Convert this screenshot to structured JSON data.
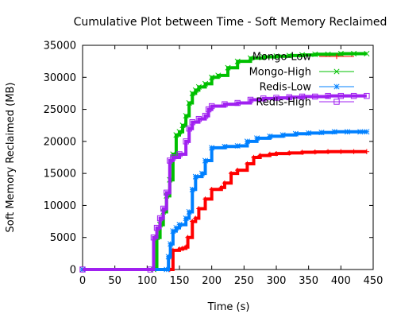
{
  "chart_data": {
    "type": "line",
    "title": "Cumulative Plot between Time - Soft Memory Reclaimed",
    "xlabel": "Time (s)",
    "ylabel": "Soft Memory Reclaimed (MB)",
    "xlim": [
      0,
      450
    ],
    "ylim": [
      0,
      35000
    ],
    "xticks": [
      0,
      50,
      100,
      150,
      200,
      250,
      300,
      350,
      400,
      450
    ],
    "yticks": [
      0,
      5000,
      10000,
      15000,
      20000,
      25000,
      30000,
      35000
    ],
    "grid": false,
    "legend_position": "top-right",
    "series": [
      {
        "name": "Mongo-Low",
        "color": "#ff0000",
        "marker": "plus",
        "x": [
          0,
          135,
          140,
          150,
          155,
          160,
          163,
          170,
          175,
          180,
          190,
          200,
          215,
          220,
          230,
          240,
          255,
          265,
          275,
          290,
          300,
          320,
          340,
          360,
          380,
          400,
          420,
          440
        ],
        "y": [
          0,
          0,
          3000,
          3200,
          3300,
          3500,
          5000,
          7500,
          8000,
          9500,
          11000,
          12500,
          12800,
          13500,
          15000,
          15500,
          16500,
          17500,
          17800,
          18000,
          18100,
          18200,
          18300,
          18350,
          18400,
          18400,
          18400,
          18400
        ]
      },
      {
        "name": "Mongo-High",
        "color": "#00c000",
        "marker": "x",
        "x": [
          0,
          110,
          115,
          120,
          125,
          130,
          135,
          140,
          145,
          150,
          155,
          160,
          165,
          170,
          175,
          180,
          190,
          200,
          210,
          225,
          240,
          260,
          280,
          300,
          320,
          340,
          360,
          380,
          400,
          420,
          440
        ],
        "y": [
          0,
          0,
          5000,
          7000,
          9000,
          11500,
          14000,
          18000,
          21000,
          21500,
          22500,
          24000,
          26000,
          27500,
          28000,
          28500,
          29000,
          30000,
          30300,
          31500,
          32500,
          33000,
          33200,
          33300,
          33400,
          33500,
          33600,
          33600,
          33700,
          33700,
          33700
        ]
      },
      {
        "name": "Redis-Low",
        "color": "#0080ff",
        "marker": "star",
        "x": [
          0,
          130,
          133,
          136,
          140,
          145,
          150,
          160,
          165,
          170,
          175,
          185,
          190,
          200,
          220,
          240,
          255,
          270,
          290,
          310,
          330,
          350,
          370,
          390,
          410,
          430,
          440
        ],
        "y": [
          0,
          0,
          2000,
          4000,
          6000,
          6500,
          7000,
          8000,
          9000,
          12500,
          14500,
          15000,
          17000,
          19000,
          19200,
          19300,
          20000,
          20500,
          20800,
          21000,
          21200,
          21300,
          21400,
          21500,
          21500,
          21500,
          21500
        ]
      },
      {
        "name": "Redis-High",
        "color": "#a020f0",
        "marker": "square",
        "x": [
          0,
          105,
          110,
          115,
          120,
          125,
          130,
          135,
          140,
          150,
          160,
          165,
          170,
          180,
          190,
          195,
          200,
          220,
          240,
          260,
          280,
          300,
          320,
          340,
          360,
          380,
          400,
          420,
          440
        ],
        "y": [
          0,
          0,
          5000,
          6500,
          8000,
          9500,
          12000,
          17000,
          17500,
          18000,
          20000,
          22000,
          23000,
          23500,
          24000,
          25000,
          25500,
          25800,
          26000,
          26500,
          26700,
          26800,
          26900,
          27000,
          27000,
          27100,
          27100,
          27100,
          27100
        ]
      }
    ]
  }
}
